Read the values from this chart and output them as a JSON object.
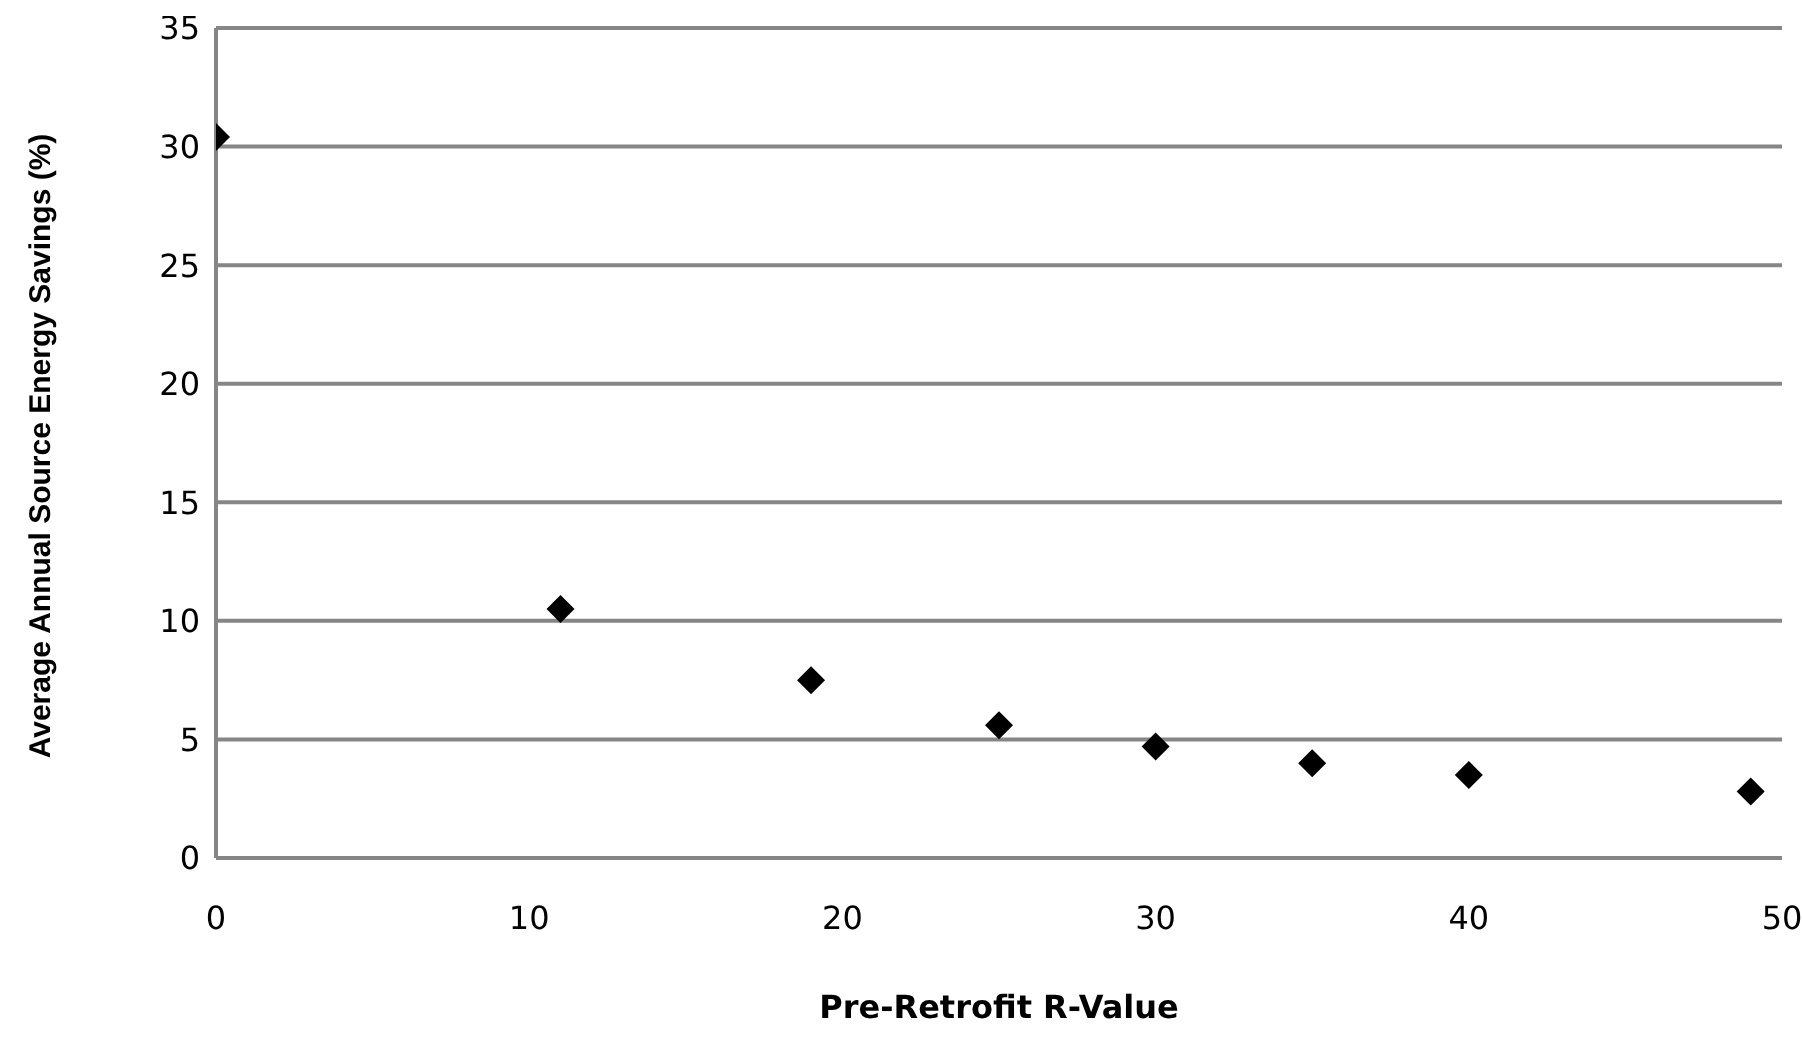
{
  "chart_data": {
    "type": "scatter",
    "xlabel": "Pre-Retrofit R-Value",
    "ylabel": "Average Annual Source Energy Savings (%)",
    "x": [
      0,
      11,
      19,
      25,
      30,
      35,
      40,
      49
    ],
    "values": [
      30.4,
      10.5,
      7.5,
      5.6,
      4.7,
      4.0,
      3.5,
      2.8
    ],
    "color": "#000000",
    "marker": "diamond",
    "xlim": [
      0,
      50
    ],
    "xticks": [
      0,
      10,
      20,
      30,
      40,
      50
    ],
    "ylim": [
      0,
      35
    ],
    "yticks": [
      0,
      5,
      10,
      15,
      20,
      25,
      30,
      35
    ],
    "grid": "y"
  }
}
